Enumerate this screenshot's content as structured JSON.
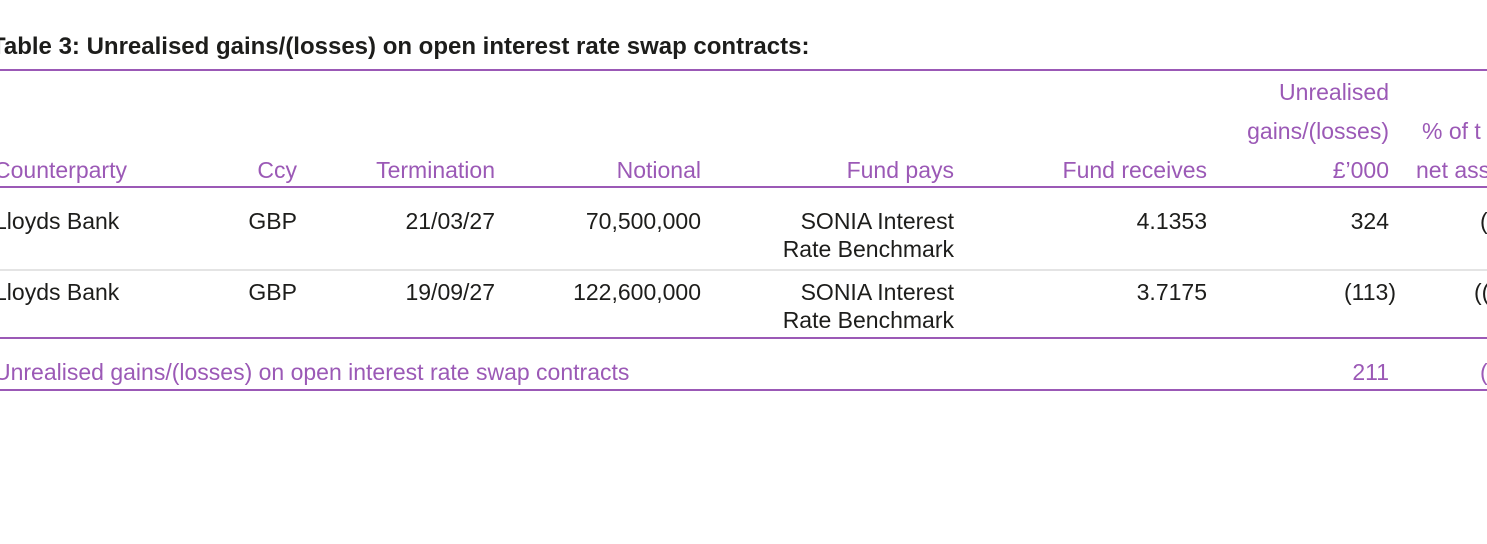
{
  "title": "Table 3: Unrealised gains/(losses) on open interest rate swap contracts:",
  "headers": {
    "counterparty": "Counterparty",
    "ccy": "Ccy",
    "termination": "Termination",
    "notional": "Notional",
    "fund_pays": "Fund pays",
    "fund_receives": "Fund receives",
    "unrealised_l1": "Unrealised",
    "unrealised_l2": "gains/(losses)",
    "unrealised_l3": "£’000",
    "pct_l1": "% of t",
    "pct_l2": "net ass"
  },
  "rows": [
    {
      "counterparty": "Lloyds Bank",
      "ccy": "GBP",
      "termination": "21/03/27",
      "notional": "70,500,000",
      "fund_pays_l1": "SONIA Interest",
      "fund_pays_l2": "Rate Benchmark",
      "fund_receives": "4.1353",
      "unrealised": "324",
      "pct": "("
    },
    {
      "counterparty": "Lloyds Bank",
      "ccy": "GBP",
      "termination": "19/09/27",
      "notional": "122,600,000",
      "fund_pays_l1": "SONIA Interest",
      "fund_pays_l2": "Rate Benchmark",
      "fund_receives": "3.7175",
      "unrealised": "(113)",
      "pct": "(("
    }
  ],
  "total": {
    "label": "Unrealised gains/(losses) on open interest rate swap contracts",
    "unrealised": "211",
    "pct": "("
  }
}
